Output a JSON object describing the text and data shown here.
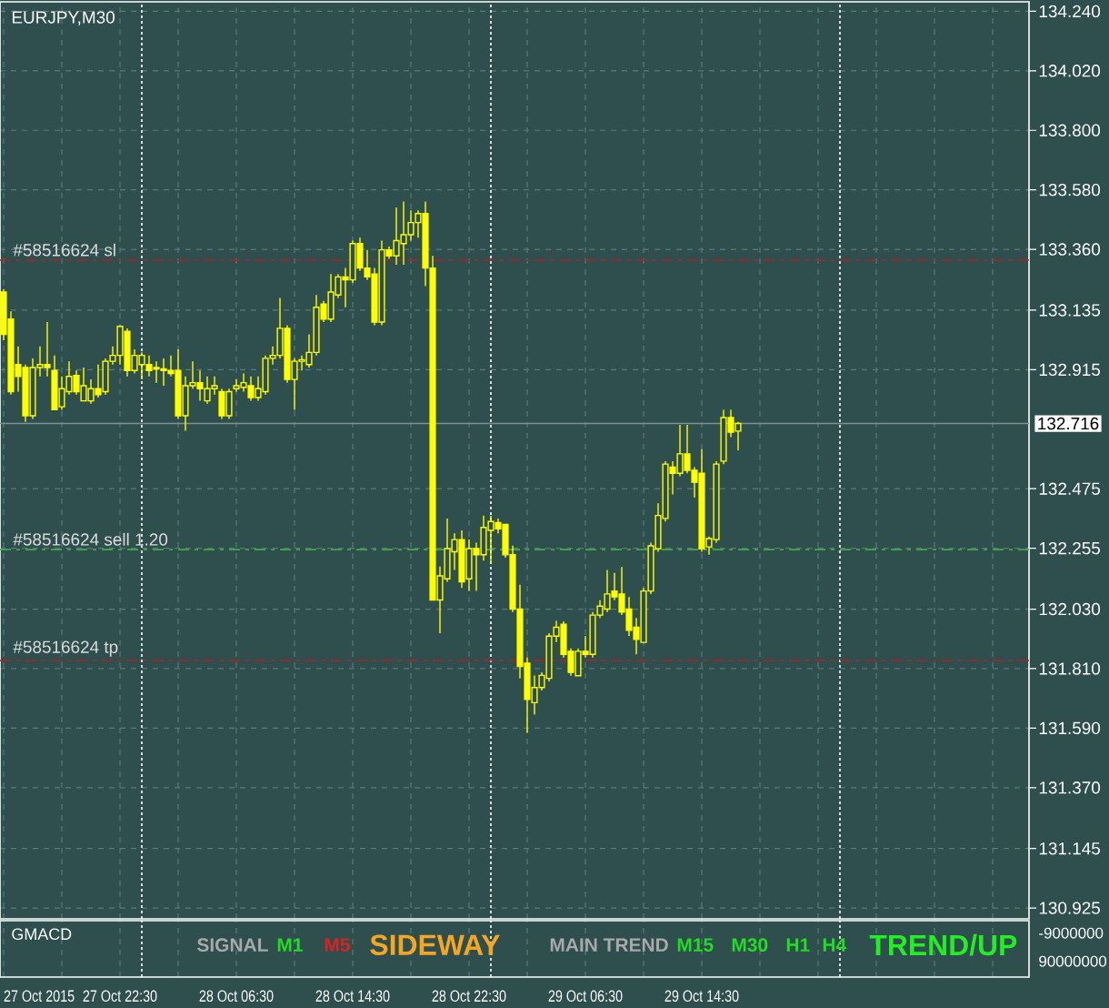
{
  "chart_data": [
    {
      "type": "candlestick",
      "title": "EURJPY,M30",
      "color": "#ffff00",
      "x": [
        "2015-10-27T14:30",
        "2015-10-27T15:00",
        "2015-10-27T15:30",
        "2015-10-27T16:00",
        "2015-10-27T16:30",
        "2015-10-27T17:00",
        "2015-10-27T17:30",
        "2015-10-27T18:00",
        "2015-10-27T18:30",
        "2015-10-27T19:00",
        "2015-10-27T19:30",
        "2015-10-27T20:00",
        "2015-10-27T20:30",
        "2015-10-27T21:00",
        "2015-10-27T21:30",
        "2015-10-27T22:00",
        "2015-10-27T22:30",
        "2015-10-27T23:00",
        "2015-10-27T23:30",
        "2015-10-28T00:00",
        "2015-10-28T00:30",
        "2015-10-28T01:00",
        "2015-10-28T01:30",
        "2015-10-28T02:00",
        "2015-10-28T02:30",
        "2015-10-28T03:00",
        "2015-10-28T03:30",
        "2015-10-28T04:00",
        "2015-10-28T04:30",
        "2015-10-28T05:00",
        "2015-10-28T05:30",
        "2015-10-28T06:00",
        "2015-10-28T06:30",
        "2015-10-28T07:00",
        "2015-10-28T07:30",
        "2015-10-28T08:00",
        "2015-10-28T08:30",
        "2015-10-28T09:00",
        "2015-10-28T09:30",
        "2015-10-28T10:00",
        "2015-10-28T10:30",
        "2015-10-28T11:00",
        "2015-10-28T11:30",
        "2015-10-28T12:00",
        "2015-10-28T12:30",
        "2015-10-28T13:00",
        "2015-10-28T13:30",
        "2015-10-28T14:00",
        "2015-10-28T14:30",
        "2015-10-28T15:00",
        "2015-10-28T15:30",
        "2015-10-28T16:00",
        "2015-10-28T16:30",
        "2015-10-28T17:00",
        "2015-10-28T17:30",
        "2015-10-28T18:00",
        "2015-10-28T18:30",
        "2015-10-28T19:00",
        "2015-10-28T19:30",
        "2015-10-28T20:00",
        "2015-10-28T20:30",
        "2015-10-28T21:00",
        "2015-10-28T21:30",
        "2015-10-28T22:00",
        "2015-10-28T22:30",
        "2015-10-28T23:00",
        "2015-10-28T23:30",
        "2015-10-29T00:00",
        "2015-10-29T00:30",
        "2015-10-29T01:00",
        "2015-10-29T01:30",
        "2015-10-29T02:00",
        "2015-10-29T02:30",
        "2015-10-29T03:00",
        "2015-10-29T03:30",
        "2015-10-29T04:00",
        "2015-10-29T04:30",
        "2015-10-29T05:00",
        "2015-10-29T05:30",
        "2015-10-29T06:00",
        "2015-10-29T06:30",
        "2015-10-29T07:00",
        "2015-10-29T07:30",
        "2015-10-29T08:00",
        "2015-10-29T08:30",
        "2015-10-29T09:00",
        "2015-10-29T09:30",
        "2015-10-29T10:00",
        "2015-10-29T10:30",
        "2015-10-29T11:00",
        "2015-10-29T11:30",
        "2015-10-29T12:00",
        "2015-10-29T12:30",
        "2015-10-29T13:00",
        "2015-10-29T13:30",
        "2015-10-29T14:00",
        "2015-10-29T14:30",
        "2015-10-29T15:00",
        "2015-10-29T15:30",
        "2015-10-29T16:00",
        "2015-10-29T16:30",
        "2015-10-29T17:00"
      ],
      "ohlc": [
        [
          133.202,
          133.213,
          133.024,
          133.046
        ],
        [
          133.102,
          133.131,
          132.823,
          132.834
        ],
        [
          132.934,
          133.001,
          132.834,
          132.89
        ],
        [
          132.923,
          132.934,
          132.722,
          132.745
        ],
        [
          132.745,
          132.957,
          132.733,
          132.923
        ],
        [
          132.923,
          133.001,
          132.89,
          132.934
        ],
        [
          132.934,
          133.091,
          132.89,
          132.923
        ],
        [
          132.912,
          132.968,
          132.767,
          132.767
        ],
        [
          132.778,
          132.89,
          132.767,
          132.845
        ],
        [
          132.834,
          132.946,
          132.823,
          132.89
        ],
        [
          132.894,
          132.912,
          132.823,
          132.834
        ],
        [
          132.8,
          132.923,
          132.8,
          132.856
        ],
        [
          132.8,
          132.879,
          132.789,
          132.845
        ],
        [
          132.845,
          132.934,
          132.812,
          132.823
        ],
        [
          132.834,
          132.957,
          132.823,
          132.946
        ],
        [
          132.946,
          133.001,
          132.934,
          132.968
        ],
        [
          132.968,
          133.079,
          132.934,
          133.075
        ],
        [
          133.057,
          133.068,
          132.89,
          132.912
        ],
        [
          132.912,
          132.99,
          132.901,
          132.968
        ],
        [
          132.934,
          132.979,
          132.879,
          132.968
        ],
        [
          132.934,
          132.968,
          132.89,
          132.912
        ],
        [
          132.923,
          132.946,
          132.867,
          132.918
        ],
        [
          132.918,
          132.957,
          132.856,
          132.912
        ],
        [
          132.912,
          132.968,
          132.89,
          132.901
        ],
        [
          132.912,
          132.99,
          132.733,
          132.745
        ],
        [
          132.745,
          132.89,
          132.689,
          132.856
        ],
        [
          132.856,
          132.946,
          132.845,
          132.867
        ],
        [
          132.867,
          132.912,
          132.8,
          132.845
        ],
        [
          132.8,
          132.89,
          132.789,
          132.845
        ],
        [
          132.845,
          132.89,
          132.823,
          132.856
        ],
        [
          132.834,
          132.845,
          132.733,
          132.745
        ],
        [
          132.745,
          132.845,
          132.733,
          132.834
        ],
        [
          132.845,
          132.879,
          132.834,
          132.856
        ],
        [
          132.85,
          132.901,
          132.834,
          132.867
        ],
        [
          132.856,
          132.89,
          132.8,
          132.812
        ],
        [
          132.812,
          132.89,
          132.8,
          132.845
        ],
        [
          132.834,
          132.968,
          132.823,
          132.957
        ],
        [
          132.957,
          133.001,
          132.934,
          132.968
        ],
        [
          132.968,
          133.18,
          132.957,
          133.068
        ],
        [
          133.068,
          133.079,
          132.867,
          132.879
        ],
        [
          132.879,
          132.957,
          132.767,
          132.946
        ],
        [
          132.946,
          132.968,
          132.912,
          132.952
        ],
        [
          132.934,
          133.046,
          132.923,
          132.979
        ],
        [
          132.979,
          133.191,
          132.968,
          133.146
        ],
        [
          133.158,
          133.169,
          133.091,
          133.102
        ],
        [
          133.102,
          133.269,
          133.091,
          133.202
        ],
        [
          133.191,
          133.269,
          133.18,
          133.258
        ],
        [
          133.258,
          133.291,
          133.146,
          133.247
        ],
        [
          133.247,
          133.392,
          133.236,
          133.381
        ],
        [
          133.381,
          133.403,
          133.28,
          133.291
        ],
        [
          133.291,
          133.358,
          133.247,
          133.258
        ],
        [
          133.269,
          133.291,
          133.079,
          133.091
        ],
        [
          133.091,
          133.392,
          133.079,
          133.358
        ],
        [
          133.358,
          133.37,
          133.325,
          133.336
        ],
        [
          133.336,
          133.515,
          133.303,
          133.392
        ],
        [
          133.381,
          133.537,
          133.303,
          133.414
        ],
        [
          133.414,
          133.504,
          133.392,
          133.459
        ],
        [
          133.459,
          133.504,
          133.403,
          133.492
        ],
        [
          133.492,
          133.537,
          133.224,
          133.291
        ],
        [
          133.291,
          133.336,
          132.064,
          132.064
        ],
        [
          132.064,
          132.187,
          131.941,
          132.153
        ],
        [
          132.142,
          132.365,
          132.131,
          132.254
        ],
        [
          132.242,
          132.31,
          132.175,
          132.287
        ],
        [
          132.287,
          132.321,
          132.108,
          132.131
        ],
        [
          132.142,
          132.287,
          132.097,
          132.254
        ],
        [
          132.254,
          132.276,
          132.097,
          132.231
        ],
        [
          132.231,
          132.376,
          132.209,
          132.332
        ],
        [
          132.321,
          132.376,
          132.198,
          132.354
        ],
        [
          132.35,
          132.365,
          132.31,
          132.327
        ],
        [
          132.343,
          132.343,
          132.22,
          132.231
        ],
        [
          132.231,
          132.265,
          132.019,
          132.03
        ],
        [
          132.03,
          132.12,
          131.774,
          131.818
        ],
        [
          131.83,
          131.852,
          131.573,
          131.696
        ],
        [
          131.684,
          131.785,
          131.64,
          131.74
        ],
        [
          131.74,
          131.796,
          131.729,
          131.785
        ],
        [
          131.774,
          131.941,
          131.763,
          131.93
        ],
        [
          131.93,
          131.986,
          131.908,
          131.963
        ],
        [
          131.974,
          131.985,
          131.851,
          131.863
        ],
        [
          131.874,
          131.885,
          131.784,
          131.796
        ],
        [
          131.784,
          131.885,
          131.784,
          131.874
        ],
        [
          131.874,
          131.93,
          131.851,
          131.863
        ],
        [
          131.863,
          132.019,
          131.851,
          132.008
        ],
        [
          132.008,
          132.063,
          131.997,
          132.041
        ],
        [
          132.03,
          132.175,
          132.019,
          132.086
        ],
        [
          132.097,
          132.164,
          132.063,
          132.075
        ],
        [
          132.086,
          132.186,
          132.008,
          132.019
        ],
        [
          132.03,
          132.075,
          131.93,
          131.952
        ],
        [
          131.963,
          131.997,
          131.863,
          131.918
        ],
        [
          131.907,
          132.108,
          131.907,
          132.097
        ],
        [
          132.097,
          132.276,
          132.086,
          132.264
        ],
        [
          132.253,
          132.421,
          132.242,
          132.376
        ],
        [
          132.365,
          132.577,
          132.354,
          132.566
        ],
        [
          132.555,
          132.577,
          132.454,
          132.532
        ],
        [
          132.532,
          132.711,
          132.521,
          132.604
        ],
        [
          132.604,
          132.711,
          132.532,
          132.543
        ],
        [
          132.543,
          132.555,
          132.443,
          132.499
        ],
        [
          132.532,
          132.621,
          132.242,
          132.253
        ],
        [
          132.26,
          132.298,
          132.231,
          132.291
        ],
        [
          132.287,
          132.577,
          132.276,
          132.566
        ],
        [
          132.577,
          132.767,
          132.566,
          132.738
        ],
        [
          132.738,
          132.767,
          132.666,
          132.684
        ],
        [
          132.688,
          132.722,
          132.617,
          132.716
        ]
      ],
      "xlim": [
        "2015-10-27T14:15",
        "2015-10-30T13:00"
      ],
      "ylim": [
        130.885,
        134.275
      ],
      "xticks": [
        {
          "value": "2015-10-27T14:30",
          "label": "27 Oct 2015"
        },
        {
          "value": "2015-10-27T18:30",
          "label": null
        },
        {
          "value": "2015-10-27T22:30",
          "label": "27 Oct 22:30"
        },
        {
          "value": "2015-10-28T02:30",
          "label": null
        },
        {
          "value": "2015-10-28T06:30",
          "label": "28 Oct 06:30"
        },
        {
          "value": "2015-10-28T10:30",
          "label": null
        },
        {
          "value": "2015-10-28T14:30",
          "label": "28 Oct 14:30"
        },
        {
          "value": "2015-10-28T18:30",
          "label": null
        },
        {
          "value": "2015-10-28T22:30",
          "label": "28 Oct 22:30"
        },
        {
          "value": "2015-10-29T02:30",
          "label": null
        },
        {
          "value": "2015-10-29T06:30",
          "label": "29 Oct 06:30"
        },
        {
          "value": "2015-10-29T10:30",
          "label": null
        },
        {
          "value": "2015-10-29T14:30",
          "label": "29 Oct 14:30"
        },
        {
          "value": "2015-10-29T18:30",
          "label": null
        },
        {
          "value": "2015-10-29T22:30",
          "label": null
        },
        {
          "value": "2015-10-30T02:30",
          "label": null
        },
        {
          "value": "2015-10-30T06:30",
          "label": null
        },
        {
          "value": "2015-10-30T10:30",
          "label": null
        }
      ],
      "yticks": [
        130.925,
        131.145,
        {
          "value": 131.37,
          "label": "131.370"
        },
        {
          "value": 131.59,
          "label": "131.590"
        },
        {
          "value": 131.81,
          "label": "131.810"
        },
        {
          "value": 132.03,
          "label": "132.030"
        },
        132.255,
        132.475,
        132.915,
        133.135,
        {
          "value": 133.36,
          "label": "133.360"
        },
        {
          "value": 133.58,
          "label": "133.580"
        },
        {
          "value": 133.8,
          "label": "133.800"
        },
        {
          "value": 134.02,
          "label": "134.020"
        },
        {
          "value": 134.24,
          "label": "134.240"
        }
      ],
      "grid": true,
      "ref_lines": [
        {
          "axis": "y",
          "value": 133.32,
          "label": "#58516624 sl",
          "color": "#b22222",
          "line_style": "dashed"
        },
        {
          "axis": "y",
          "value": 132.25,
          "label": "#58516624 sell 1.20",
          "color": "#3cb043",
          "line_style": "dashed"
        },
        {
          "axis": "y",
          "value": 131.84,
          "label": "#58516624 tp",
          "color": "#b22222",
          "line_style": "dashed"
        },
        {
          "axis": "y",
          "value": 132.716,
          "label": "132.716",
          "color": "#7f8f8f",
          "line_style": "solid"
        },
        {
          "axis": "x",
          "value": "2015-10-28T00:00",
          "color": "#ffffff",
          "line_style": "dotted"
        },
        {
          "axis": "x",
          "value": "2015-10-29T00:00",
          "color": "#ffffff",
          "line_style": "dotted"
        },
        {
          "axis": "x",
          "value": "2015-10-30T00:00",
          "color": "#ffffff",
          "line_style": "dotted"
        }
      ]
    },
    {
      "type": "other",
      "title": "GMACD",
      "annotations": [
        "SIGNAL",
        "M1",
        "M5",
        "SIDEWAY",
        "MAIN TREND",
        "M15",
        "M30",
        "H1",
        "H4",
        "TREND/UP",
        "-9000000",
        "90000000"
      ],
      "colors": [
        "#a9a9a9",
        "#22dd22",
        "#dd2020",
        "#f5a623",
        "#a9a9a9",
        "#22dd22",
        "#22dd22",
        "#22dd22",
        "#22dd22",
        "#22ee22",
        "#ffffff",
        "#ffffff"
      ]
    }
  ]
}
